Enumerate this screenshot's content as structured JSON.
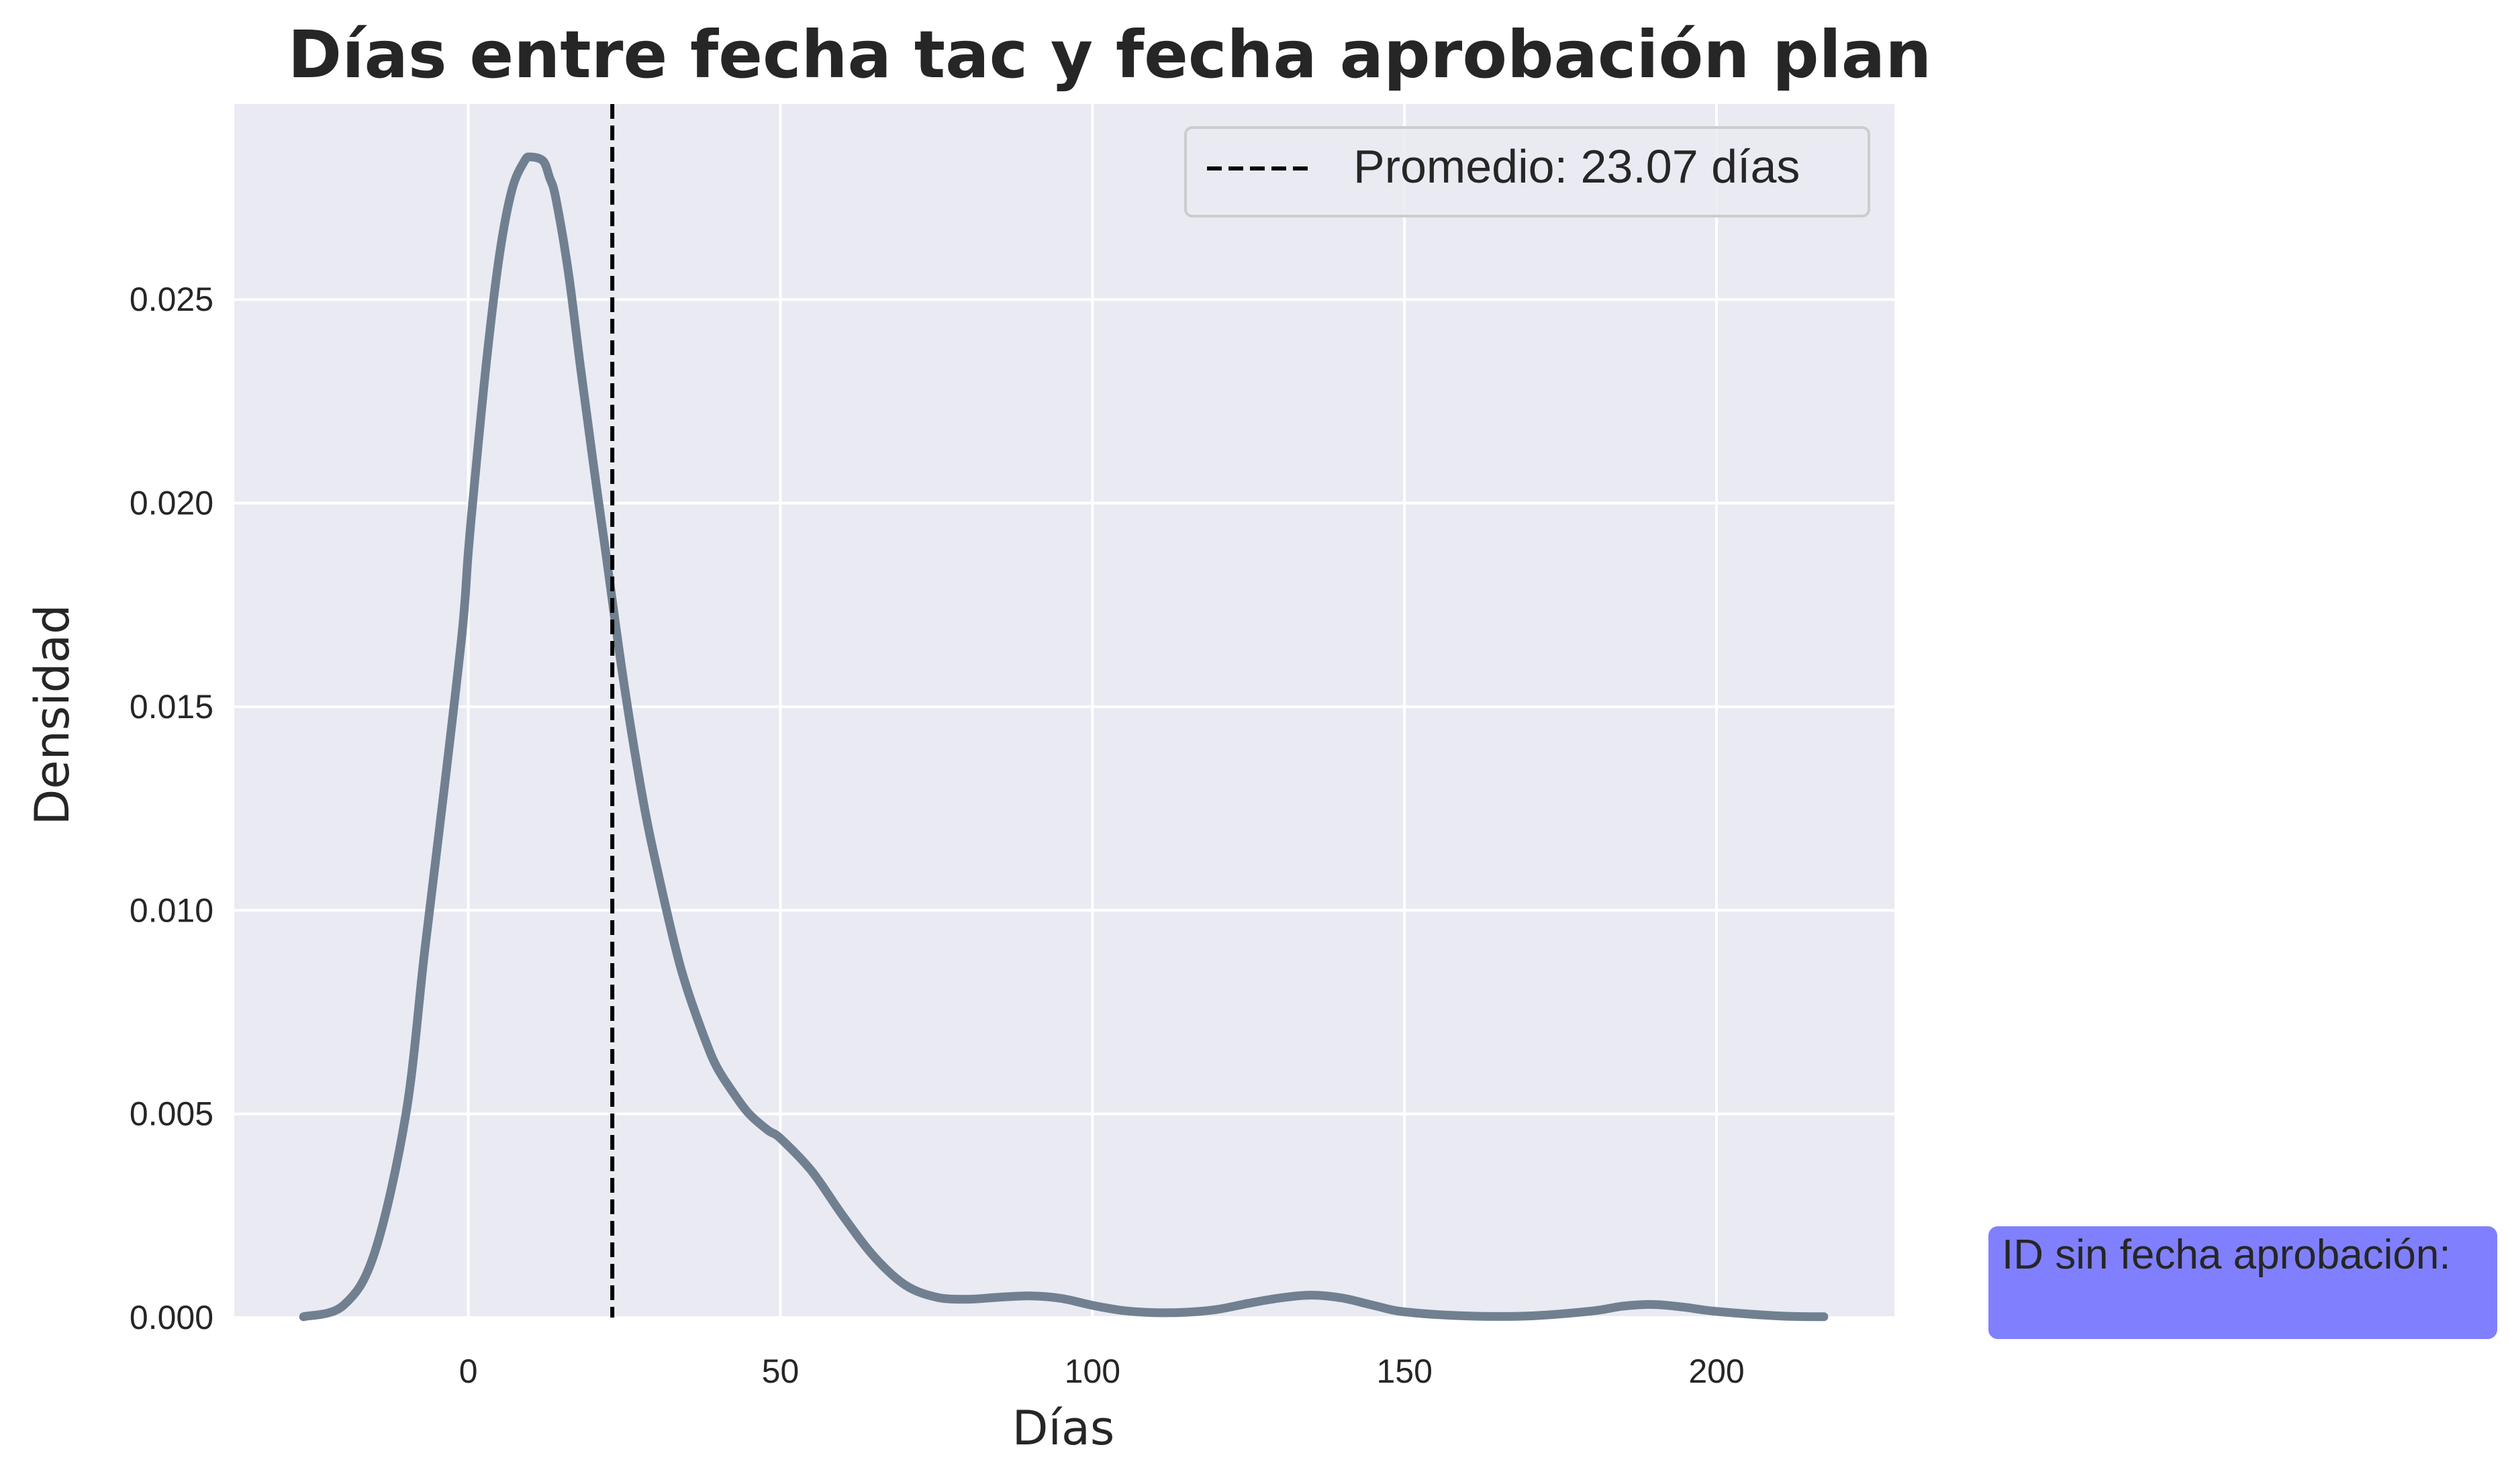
{
  "chart_data": {
    "type": "line",
    "title": "Días entre fecha tac y fecha aprobación plan",
    "xlabel": "Días",
    "ylabel": "Densidad",
    "xlim": [
      -37.5,
      228.5
    ],
    "ylim": [
      0,
      0.0298
    ],
    "xticks": [
      0,
      50,
      100,
      150,
      200
    ],
    "yticks": [
      0.0,
      0.005,
      0.01,
      0.015,
      0.02,
      0.025
    ],
    "ytick_labels": [
      "0.000",
      "0.005",
      "0.010",
      "0.015",
      "0.020",
      "0.025"
    ],
    "grid": true,
    "legend_position": "top-right",
    "background_color": "#eaeaf2",
    "series": [
      {
        "name": "",
        "color": "#708090",
        "x": [
          -26.4,
          -20,
          -15,
          -10,
          -7,
          -4,
          -1,
          0,
          1,
          3,
          5,
          7,
          9,
          10,
          12,
          13,
          14,
          16,
          18,
          20,
          22,
          25,
          28,
          30,
          33,
          35,
          38,
          40,
          43,
          45,
          48,
          50,
          55,
          60,
          65,
          70,
          75,
          80,
          85,
          90,
          95,
          100,
          105,
          110,
          115,
          120,
          125,
          130,
          135,
          140,
          145,
          150,
          160,
          170,
          180,
          185,
          190,
          195,
          200,
          210,
          217.2
        ],
        "y": [
          2e-05,
          0.0003,
          0.0016,
          0.005,
          0.009,
          0.0128,
          0.0168,
          0.0188,
          0.0205,
          0.0236,
          0.0261,
          0.0277,
          0.0284,
          0.0285,
          0.0284,
          0.028,
          0.0275,
          0.0257,
          0.0233,
          0.021,
          0.0188,
          0.0155,
          0.0127,
          0.0112,
          0.0092,
          0.0081,
          0.0068,
          0.0061,
          0.0054,
          0.005,
          0.0046,
          0.0044,
          0.0036,
          0.0025,
          0.0015,
          0.0008,
          0.0005,
          0.00045,
          0.0005,
          0.00053,
          0.00047,
          0.0003,
          0.00017,
          0.00012,
          0.00013,
          0.0002,
          0.00035,
          0.00048,
          0.00055,
          0.00048,
          0.0003,
          0.00014,
          4e-05,
          4e-05,
          0.00016,
          0.00028,
          0.00032,
          0.00025,
          0.00015,
          4e-05,
          2e-05
        ]
      }
    ],
    "vlines": [
      {
        "x": 23.07,
        "color": "#000000",
        "style": "dashed",
        "label": "Promedio: 23.07 días"
      }
    ],
    "annotation_box": {
      "text": "ID sin fecha aprobación:",
      "background": "#8080ff"
    }
  }
}
